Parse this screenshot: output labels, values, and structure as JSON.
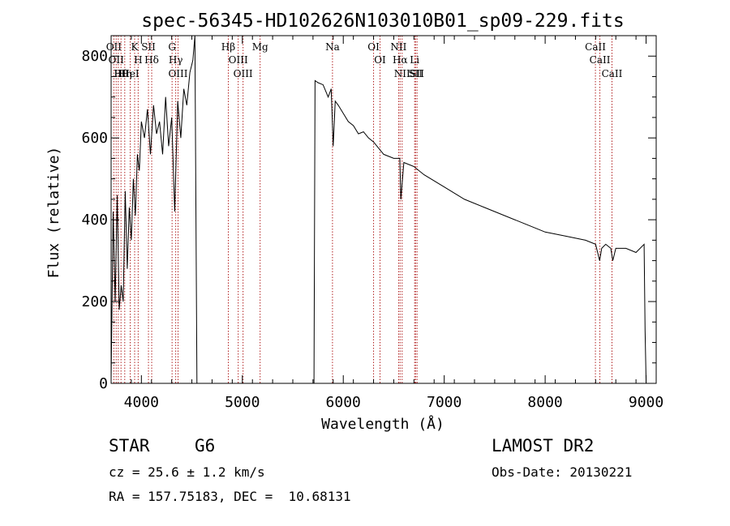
{
  "chart_data": {
    "type": "line",
    "title": "spec-56345-HD102626N103010B01_sp09-229.fits",
    "xlabel": "Wavelength (Å)",
    "ylabel": "Flux (relative)",
    "xlim": [
      3700,
      9100
    ],
    "ylim": [
      0,
      850
    ],
    "xticks": [
      4000,
      5000,
      6000,
      7000,
      8000,
      9000
    ],
    "yticks": [
      0,
      200,
      400,
      600,
      800
    ],
    "grid": false,
    "legend": "none",
    "line_color": "#000000",
    "marker_color": "#b22222",
    "series": [
      {
        "x": [
          3700,
          3720,
          3740,
          3760,
          3780,
          3800,
          3820,
          3840,
          3860,
          3880,
          3900,
          3920,
          3940,
          3960,
          3980,
          4000,
          4030,
          4060,
          4090,
          4120,
          4150,
          4180,
          4210,
          4240,
          4270,
          4300,
          4330,
          4360,
          4390,
          4420,
          4450,
          4480,
          4510,
          4530,
          4550,
          5710,
          5720,
          5750,
          5800,
          5850,
          5880,
          5900,
          5920,
          5950,
          6000,
          6050,
          6100,
          6150,
          6200,
          6250,
          6300,
          6400,
          6500,
          6560,
          6570,
          6600,
          6700,
          6800,
          7000,
          7200,
          7400,
          7600,
          7800,
          8000,
          8200,
          8400,
          8500,
          8540,
          8560,
          8600,
          8650,
          8670,
          8700,
          8800,
          8900,
          8980,
          8990,
          9000
        ],
        "y": [
          10,
          420,
          200,
          460,
          180,
          240,
          200,
          470,
          280,
          430,
          350,
          500,
          410,
          560,
          520,
          640,
          600,
          670,
          560,
          680,
          610,
          640,
          560,
          700,
          580,
          650,
          420,
          690,
          600,
          720,
          680,
          760,
          790,
          850,
          0,
          0,
          740,
          735,
          730,
          700,
          720,
          580,
          690,
          680,
          660,
          640,
          630,
          610,
          615,
          600,
          590,
          560,
          550,
          550,
          450,
          540,
          530,
          510,
          480,
          450,
          430,
          410,
          390,
          370,
          360,
          350,
          340,
          300,
          330,
          340,
          330,
          300,
          330,
          330,
          320,
          340,
          130,
          0
        ]
      }
    ],
    "line_ids": [
      {
        "x": 3727,
        "label": "OII"
      },
      {
        "x": 3750,
        "label": "OII"
      },
      {
        "x": 3771,
        "label": "H"
      },
      {
        "x": 3798,
        "label": "Hθ"
      },
      {
        "x": 3835,
        "label": "Hη"
      },
      {
        "x": 3889,
        "label": "HeI"
      },
      {
        "x": 3933,
        "label": "K"
      },
      {
        "x": 3968,
        "label": "H"
      },
      {
        "x": 4070,
        "label": "SII"
      },
      {
        "x": 4102,
        "label": "Hδ"
      },
      {
        "x": 4304,
        "label": "G"
      },
      {
        "x": 4340,
        "label": "Hγ"
      },
      {
        "x": 4363,
        "label": "OIII"
      },
      {
        "x": 4861,
        "label": "Hβ"
      },
      {
        "x": 4959,
        "label": "OIII"
      },
      {
        "x": 5007,
        "label": "OIII"
      },
      {
        "x": 5176,
        "label": "Mg"
      },
      {
        "x": 5893,
        "label": "Na"
      },
      {
        "x": 6300,
        "label": "OI"
      },
      {
        "x": 6364,
        "label": "OI"
      },
      {
        "x": 6548,
        "label": "NII"
      },
      {
        "x": 6563,
        "label": "Hα"
      },
      {
        "x": 6583,
        "label": "NII"
      },
      {
        "x": 6707,
        "label": "Li"
      },
      {
        "x": 6716,
        "label": "SII"
      },
      {
        "x": 6731,
        "label": "SII"
      },
      {
        "x": 8498,
        "label": "CaII"
      },
      {
        "x": 8542,
        "label": "CaII"
      },
      {
        "x": 8662,
        "label": "CaII"
      }
    ]
  },
  "info": {
    "object_class": "STAR",
    "subclass": "G6",
    "survey": "LAMOST DR2",
    "redshift": "cz = 25.6 ± 1.2 km/s",
    "obs_date": "Obs-Date: 20130221",
    "coords": "RA = 157.75183, DEC =  10.68131"
  }
}
